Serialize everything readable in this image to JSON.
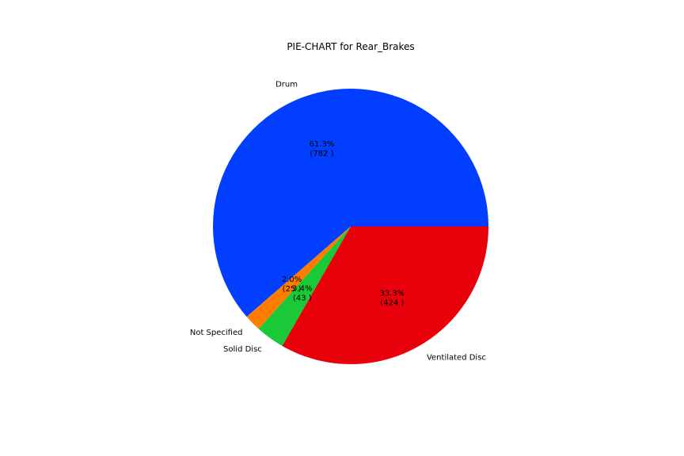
{
  "chart_data": {
    "type": "pie",
    "title": "PIE-CHART for Rear_Brakes",
    "start_angle_deg": 0,
    "direction": "counterclockwise",
    "slices": [
      {
        "label": "Drum",
        "value": 782,
        "percent_label": "61.3%",
        "count_label": "(782 )",
        "color": "#023eff"
      },
      {
        "label": "Not Specified",
        "value": 25,
        "percent_label": "2.0%",
        "count_label": "(25 )",
        "color": "#ff7c00"
      },
      {
        "label": "Solid Disc",
        "value": 43,
        "percent_label": "3.4%",
        "count_label": "(43 )",
        "color": "#1ac938"
      },
      {
        "label": "Ventilated Disc",
        "value": 424,
        "percent_label": "33.3%",
        "count_label": "(424 )",
        "color": "#e8000b"
      }
    ]
  }
}
